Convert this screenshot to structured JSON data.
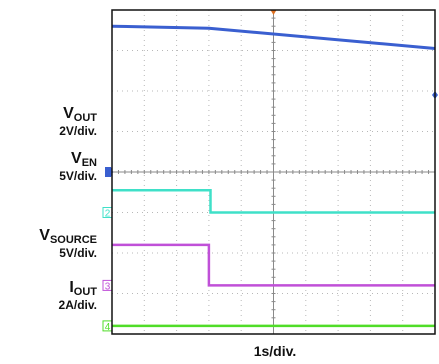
{
  "chart_data": {
    "type": "line",
    "title": "",
    "xlabel": "1s/div.",
    "grid": true,
    "divisions": {
      "x": 10,
      "y": 8
    },
    "channels": [
      {
        "id": "1",
        "name": "V",
        "subscript": "OUT",
        "scale": "2V/div.",
        "color": "#3a5fd0",
        "marker": {
          "shape": "D",
          "level_div": 4.0
        },
        "points": [
          [
            0,
            7.6
          ],
          [
            3.0,
            7.55
          ],
          [
            10,
            7.05
          ]
        ]
      },
      {
        "id": "2",
        "name": "V",
        "subscript": "EN",
        "scale": "5V/div.",
        "color": "#3fe0c8",
        "marker": {
          "shape": "2",
          "level_div": 3.0
        },
        "points": [
          [
            0,
            3.55
          ],
          [
            3.05,
            3.55
          ],
          [
            3.05,
            3.0
          ],
          [
            10,
            3.0
          ]
        ]
      },
      {
        "id": "3",
        "name": "V",
        "subscript": "SOURCE",
        "scale": "5V/div.",
        "color": "#c050d8",
        "marker": {
          "shape": "3",
          "level_div": 1.2
        },
        "points": [
          [
            0,
            2.2
          ],
          [
            3.0,
            2.2
          ],
          [
            3.0,
            1.2
          ],
          [
            10,
            1.2
          ]
        ]
      },
      {
        "id": "4",
        "name": "I",
        "subscript": "OUT",
        "scale": "2A/div.",
        "color": "#50dd28",
        "marker": {
          "shape": "4",
          "level_div": 0.2
        },
        "points": [
          [
            0,
            0.2
          ],
          [
            10,
            0.2
          ]
        ]
      }
    ]
  }
}
